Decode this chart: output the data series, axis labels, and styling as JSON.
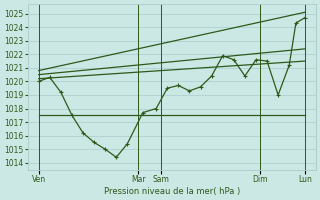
{
  "background_color": "#cce8e4",
  "grid_color": "#aacccc",
  "line_color": "#2d5a1b",
  "title": "Pression niveau de la mer( hPa )",
  "ylim": [
    1013.5,
    1025.7
  ],
  "yticks": [
    1014,
    1015,
    1016,
    1017,
    1018,
    1019,
    1020,
    1021,
    1022,
    1023,
    1024,
    1025
  ],
  "xlim": [
    0,
    13
  ],
  "xtick_pos": [
    0.5,
    5.0,
    6.0,
    10.5,
    12.5
  ],
  "xtick_labels": [
    "Ven",
    "Mar",
    "Sam",
    "Dim",
    "Lun"
  ],
  "vlines_x": [
    0.5,
    5.0,
    6.0,
    10.5,
    12.5
  ],
  "main_x": [
    0.5,
    1.0,
    1.5,
    2.0,
    2.5,
    3.0,
    3.5,
    4.0,
    4.5,
    5.2,
    5.8,
    6.3,
    6.8,
    7.3,
    7.8,
    8.3,
    8.8,
    9.3,
    9.8,
    10.3,
    10.8,
    11.3,
    11.8,
    12.1,
    12.5
  ],
  "main_y": [
    1020.0,
    1020.3,
    1019.2,
    1017.5,
    1016.2,
    1015.5,
    1015.0,
    1014.4,
    1015.4,
    1017.7,
    1018.0,
    1019.5,
    1019.7,
    1019.3,
    1019.6,
    1020.4,
    1021.9,
    1021.6,
    1020.4,
    1021.6,
    1021.5,
    1019.0,
    1021.2,
    1024.3,
    1024.7
  ],
  "trend1_x": [
    0.5,
    12.5
  ],
  "trend1_y": [
    1017.5,
    1017.5
  ],
  "trend2_x": [
    0.5,
    12.5
  ],
  "trend2_y": [
    1020.2,
    1021.5
  ],
  "trend3_x": [
    0.5,
    12.5
  ],
  "trend3_y": [
    1020.5,
    1022.4
  ],
  "trend4_x": [
    0.5,
    12.5
  ],
  "trend4_y": [
    1020.8,
    1025.1
  ]
}
